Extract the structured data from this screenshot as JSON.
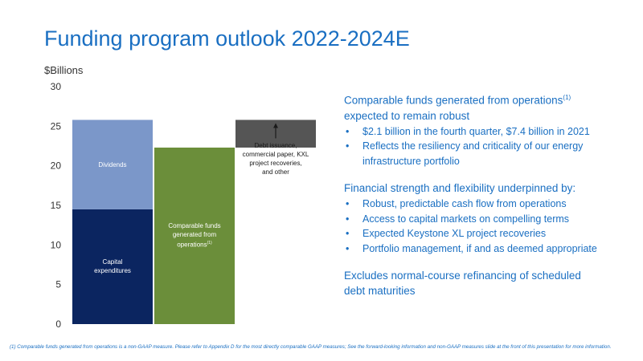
{
  "title": "Funding program outlook 2022-2024E",
  "unit_label": "$Billions",
  "chart_data": {
    "type": "bar",
    "stacked": true,
    "ylim": [
      0,
      30
    ],
    "yticks": [
      0,
      5,
      10,
      15,
      20,
      25,
      30
    ],
    "grid": false,
    "legend": "none",
    "bars": [
      {
        "segments": [
          {
            "label": "Capital\nexpenditures",
            "value": 14.5,
            "color": "#0b2560"
          },
          {
            "label": "Dividends",
            "value": 11.3,
            "color": "#7b97c9"
          }
        ]
      },
      {
        "segments": [
          {
            "label": "Comparable funds\ngenerated from\noperations",
            "label_sup": "(1)",
            "value": 22.3,
            "color": "#6b8e3a"
          }
        ]
      },
      {
        "base": 22.3,
        "segments": [
          {
            "label": "",
            "value": 3.5,
            "color": "#555555"
          }
        ],
        "annotation": "Debt issuance,\ncommercial paper, KXL\nproject recoveries,\nand other"
      }
    ]
  },
  "sections": [
    {
      "heading": "Comparable funds generated from operations",
      "heading_sup": "(1)",
      "heading_cont": "expected to remain robust",
      "bullets": [
        "$2.1 billion in the fourth quarter, $7.4 billion in 2021",
        "Reflects the resiliency and criticality of our energy\ninfrastructure portfolio"
      ]
    },
    {
      "heading": "Financial strength and flexibility underpinned by:",
      "bullets": [
        "Robust, predictable cash flow from operations",
        "Access to capital markets on compelling terms",
        "Expected Keystone XL project recoveries",
        "Portfolio management, if and as deemed appropriate"
      ]
    },
    {
      "heading": "Excludes normal-course refinancing of scheduled\ndebt maturities",
      "bullets": []
    }
  ],
  "footnote": "(1) Comparable funds generated from operations is a non-GAAP measure. Please refer to Appendix D for the most directly comparable GAAP measures; See the forward-looking information and non-GAAP measures slide at the front of this presentation for more information.",
  "bullet_char": "•"
}
